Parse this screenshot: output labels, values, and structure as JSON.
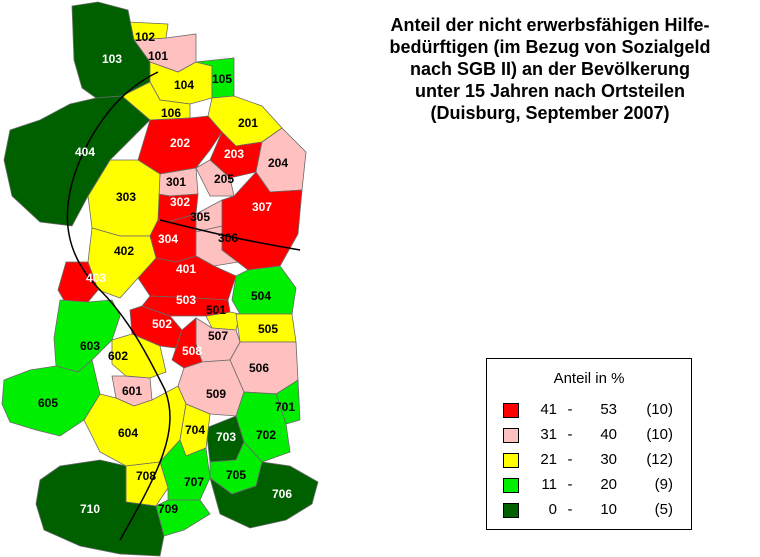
{
  "title_lines": [
    "Anteil der nicht erwerbsfähigen Hilfe-",
    "bedürftigen (im Bezug von Sozialgeld",
    "nach SGB II) an der Bevölkerung",
    "unter 15 Jahren nach Ortsteilen",
    "(Duisburg, September 2007)"
  ],
  "legend": {
    "title": "Anteil in %",
    "classes": [
      {
        "min": "41",
        "dash": "-",
        "max": "53",
        "count": "(10)",
        "color": "#ff0000"
      },
      {
        "min": "31",
        "dash": "-",
        "max": "40",
        "count": "(10)",
        "color": "#ffc0c0"
      },
      {
        "min": "21",
        "dash": "-",
        "max": "30",
        "count": "(12)",
        "color": "#ffff00"
      },
      {
        "min": "11",
        "dash": "-",
        "max": "20",
        "count": "(9)",
        "color": "#00ee00"
      },
      {
        "min": "0",
        "dash": "-",
        "max": "10",
        "count": "(5)",
        "color": "#006000"
      }
    ]
  },
  "districts": [
    {
      "id": "101",
      "class": 1
    },
    {
      "id": "102",
      "class": 2
    },
    {
      "id": "103",
      "class": 4
    },
    {
      "id": "104",
      "class": 2
    },
    {
      "id": "105",
      "class": 3
    },
    {
      "id": "106",
      "class": 2
    },
    {
      "id": "201",
      "class": 2
    },
    {
      "id": "202",
      "class": 0
    },
    {
      "id": "203",
      "class": 0
    },
    {
      "id": "204",
      "class": 1
    },
    {
      "id": "205",
      "class": 1
    },
    {
      "id": "301",
      "class": 1
    },
    {
      "id": "302",
      "class": 0
    },
    {
      "id": "303",
      "class": 2
    },
    {
      "id": "304",
      "class": 0
    },
    {
      "id": "305",
      "class": 1
    },
    {
      "id": "306",
      "class": 1
    },
    {
      "id": "307",
      "class": 0
    },
    {
      "id": "401",
      "class": 0
    },
    {
      "id": "402",
      "class": 2
    },
    {
      "id": "403",
      "class": 0
    },
    {
      "id": "404",
      "class": 4
    },
    {
      "id": "501",
      "class": 2
    },
    {
      "id": "502",
      "class": 0
    },
    {
      "id": "503",
      "class": 0
    },
    {
      "id": "504",
      "class": 3
    },
    {
      "id": "505",
      "class": 2
    },
    {
      "id": "506",
      "class": 1
    },
    {
      "id": "507",
      "class": 1
    },
    {
      "id": "508",
      "class": 0
    },
    {
      "id": "509",
      "class": 1
    },
    {
      "id": "601",
      "class": 1
    },
    {
      "id": "602",
      "class": 2
    },
    {
      "id": "603",
      "class": 3
    },
    {
      "id": "604",
      "class": 2
    },
    {
      "id": "605",
      "class": 3
    },
    {
      "id": "701",
      "class": 3
    },
    {
      "id": "702",
      "class": 3
    },
    {
      "id": "703",
      "class": 4
    },
    {
      "id": "704",
      "class": 2
    },
    {
      "id": "705",
      "class": 3
    },
    {
      "id": "706",
      "class": 4
    },
    {
      "id": "707",
      "class": 3
    },
    {
      "id": "708",
      "class": 2
    },
    {
      "id": "709",
      "class": 3
    },
    {
      "id": "710",
      "class": 4
    }
  ]
}
